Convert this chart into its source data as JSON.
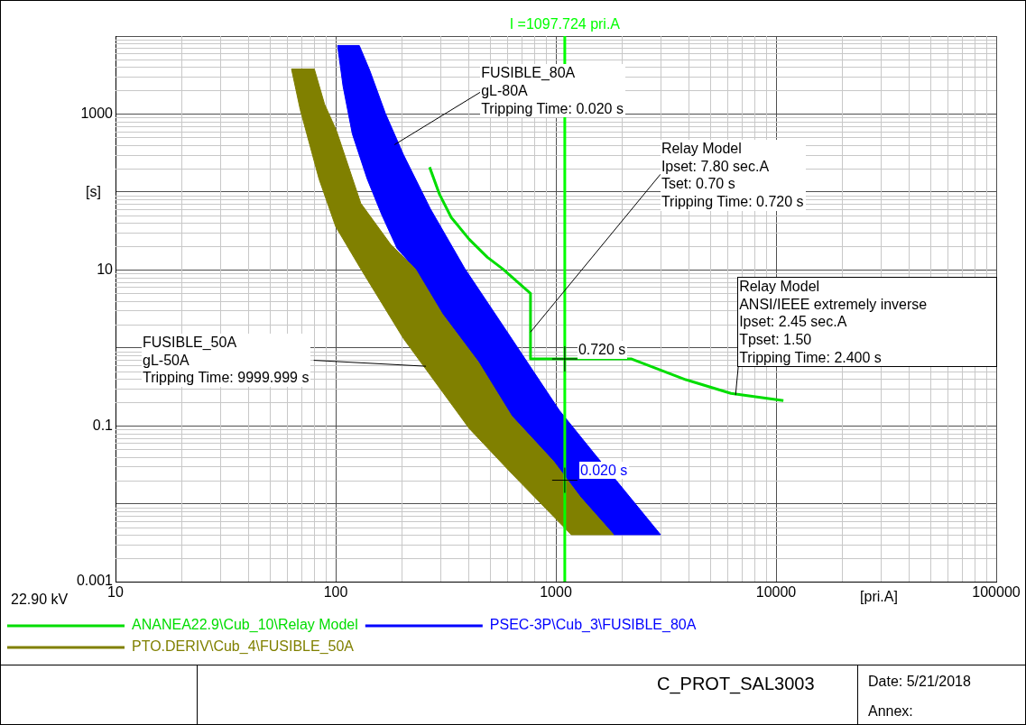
{
  "chart_data": {
    "type": "line",
    "xlim": [
      10,
      100000
    ],
    "ylim": [
      0.001,
      10000
    ],
    "xticks": [
      10,
      100,
      1000,
      10000,
      100000
    ],
    "yticks": [
      0.001,
      {
        "value": 0.01,
        "label": null
      },
      0.1,
      {
        "value": 1,
        "label": null
      },
      10,
      {
        "value": 100,
        "label": null
      },
      1000,
      {
        "value": 10000,
        "label": null
      }
    ],
    "log": "xy",
    "grid": true,
    "marker": "none",
    "legend": "bottom",
    "ylabel": "[s]",
    "xlabel": "[pri.A]",
    "series": [
      {
        "name": "ANANEA22.9\\Cub_10\\Relay Model",
        "type": "line",
        "color": "#00dd00",
        "x": [
          267,
          296,
          335,
          404,
          489,
          573,
          767,
          767,
          2208,
          3890,
          6240,
          10800
        ],
        "values": [
          208,
          93.5,
          47,
          24.7,
          14.5,
          10.3,
          5.0,
          0.72,
          0.72,
          0.39,
          0.26,
          0.21
        ]
      },
      {
        "name": "PSEC-3P\\Cub_3\\FUSIBLE_80A",
        "type": "area",
        "color": "#0000ff",
        "x": [
          102,
          108,
          119,
          139,
          162,
          190,
          230,
          305,
          444,
          629,
          972,
          1290,
          1830,
          2990,
          1473,
          1038,
          590,
          385,
          269,
          203,
          168,
          143,
          128,
          102
        ],
        "values": [
          7570,
          2280,
          557,
          147,
          50.7,
          18.9,
          10.3,
          2.72,
          0.662,
          0.134,
          0.0354,
          0.0122,
          0.004,
          0.004,
          0.0462,
          0.157,
          1.73,
          10.5,
          61,
          302,
          1027,
          3590,
          7570,
          7570
        ]
      },
      {
        "name": "PTO.DERIV\\Cub_4\\FUSIBLE_50A",
        "type": "area",
        "color": "#808000",
        "x": [
          63,
          69,
          84,
          100,
          130,
          203,
          404,
          630,
          1175,
          1830,
          1290,
          972,
          629,
          444,
          305,
          230,
          178,
          130,
          101,
          89,
          80,
          63
        ],
        "values": [
          3780,
          1140,
          147,
          35.9,
          10.3,
          1.32,
          0.0923,
          0.0244,
          0.004,
          0.004,
          0.0122,
          0.0354,
          0.134,
          0.662,
          2.72,
          10.3,
          21.1,
          71.6,
          603,
          1340,
          3780,
          3780
        ]
      }
    ],
    "ref_lines": [
      {
        "axis": "x",
        "value": 1097.724,
        "label": "I =1097.724 pri.A",
        "color": "#00ff00"
      }
    ],
    "annotations": [
      {
        "text": "FUSIBLE_80A\ngL-80A\nTripping Time: 0.020 s",
        "x": 185,
        "y": 404
      },
      {
        "text": "Relay Model\nIpset: 7.80 sec.A\nTset: 0.70 s\nTripping Time: 0.720 s",
        "x": 767,
        "y": 1.59
      },
      {
        "text": "Relay Model\nANSI/IEEE extremely inverse\nIpset: 2.45 sec.A\nTpset: 1.50\nTripping Time: 2.400 s",
        "x": 6550,
        "y": 0.247
      },
      {
        "text": "FUSIBLE_50A\ngL-50A\nTripping Time: 9999.999 s",
        "x": 257,
        "y": 0.58
      },
      {
        "text": "0.720 s",
        "x": 1097.724,
        "y": 0.72
      },
      {
        "text": "0.020 s",
        "x": 1097.724,
        "y": 0.02
      },
      "22.90 kV",
      "C_PROT_SAL3003",
      "Date: 5/21/2018",
      "Annex:"
    ]
  }
}
